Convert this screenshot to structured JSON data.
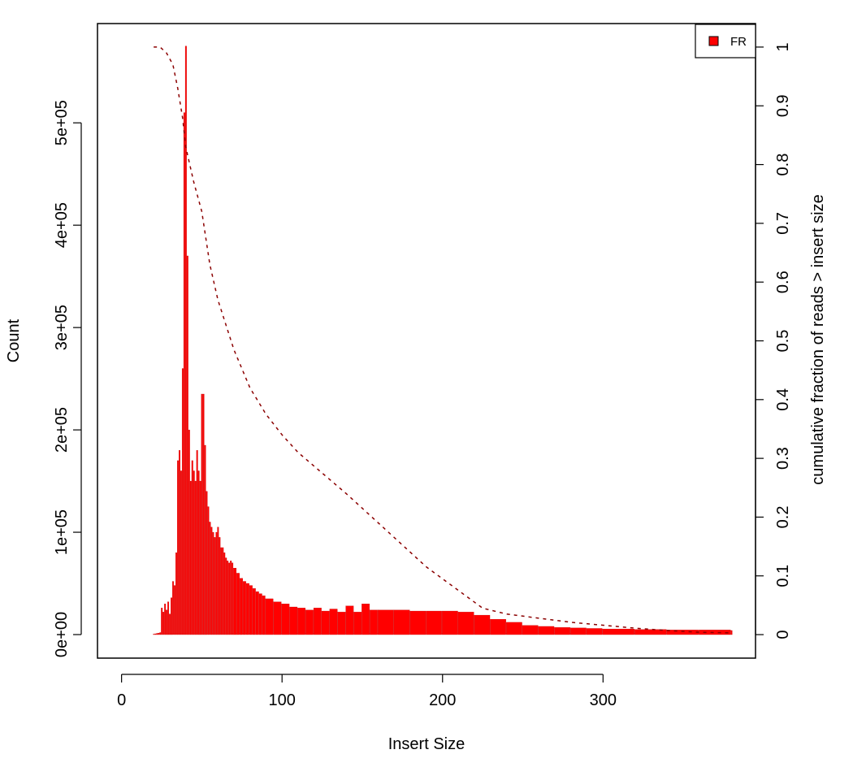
{
  "chart_data": {
    "type": "bar",
    "xlabel": "Insert Size",
    "ylabel": "Count",
    "y2label": "cumulative fraction of reads > insert size",
    "xlim": [
      -15,
      395
    ],
    "ylim": [
      -23000,
      597000
    ],
    "y2lim": [
      -0.04,
      1.04
    ],
    "x_ticks": [
      0,
      100,
      200,
      300
    ],
    "y_ticks": [
      0,
      100000,
      200000,
      300000,
      400000,
      500000
    ],
    "y_tick_labels": [
      "0e+00",
      "1e+05",
      "2e+05",
      "3e+05",
      "4e+05",
      "5e+05"
    ],
    "y2_ticks": [
      0,
      0.1,
      0.2,
      0.3,
      0.4,
      0.5,
      0.6,
      0.7,
      0.8,
      0.9,
      1
    ],
    "y2_tick_labels": [
      "0",
      "0.1",
      "0.2",
      "0.3",
      "0.4",
      "0.5",
      "0.6",
      "0.7",
      "0.8",
      "0.9",
      "1"
    ],
    "grid": false,
    "legend": {
      "position": "top-right",
      "entries": [
        {
          "label": "FR",
          "color": "#ff0000"
        }
      ]
    },
    "series": [
      {
        "name": "FR",
        "kind": "bar",
        "color": "#ff0000",
        "x": [
          20,
          21,
          22,
          23,
          24,
          25,
          26,
          27,
          28,
          29,
          30,
          31,
          32,
          33,
          34,
          35,
          36,
          37,
          38,
          39,
          40,
          41,
          42,
          43,
          44,
          45,
          46,
          47,
          48,
          49,
          50,
          51,
          52,
          53,
          54,
          55,
          56,
          57,
          58,
          59,
          60,
          61,
          62,
          63,
          64,
          65,
          66,
          67,
          68,
          69,
          70,
          72,
          74,
          76,
          78,
          80,
          82,
          84,
          86,
          88,
          90,
          95,
          100,
          105,
          110,
          115,
          120,
          125,
          130,
          135,
          140,
          145,
          150,
          155,
          160,
          170,
          180,
          190,
          200,
          210,
          220,
          230,
          240,
          250,
          260,
          270,
          280,
          290,
          300,
          320,
          340,
          360,
          380
        ],
        "values": [
          500,
          800,
          1200,
          1500,
          2000,
          26000,
          22000,
          30000,
          24000,
          32000,
          20000,
          36000,
          52000,
          48000,
          80000,
          170000,
          180000,
          160000,
          260000,
          510000,
          575000,
          370000,
          200000,
          150000,
          170000,
          160000,
          150000,
          180000,
          160000,
          150000,
          235000,
          235000,
          185000,
          140000,
          125000,
          110000,
          105000,
          100000,
          95000,
          100000,
          105000,
          95000,
          85000,
          85000,
          80000,
          75000,
          72000,
          70000,
          72000,
          70000,
          65000,
          60000,
          55000,
          52000,
          50000,
          48000,
          45000,
          42000,
          40000,
          38000,
          35000,
          32000,
          30000,
          27000,
          26000,
          24000,
          26000,
          23000,
          25000,
          22000,
          28000,
          22000,
          30000,
          24000,
          24000,
          24000,
          23000,
          23000,
          23000,
          22000,
          19000,
          15000,
          12000,
          9000,
          8000,
          7000,
          6500,
          6000,
          5500,
          5000,
          4500,
          4500,
          4000
        ]
      },
      {
        "name": "cumulative fraction of reads > insert size",
        "kind": "line",
        "color": "#8b0000",
        "line_style": "dashed",
        "x": [
          20,
          24,
          28,
          32,
          35,
          38,
          40,
          45,
          50,
          55,
          60,
          70,
          80,
          90,
          100,
          110,
          125,
          140,
          150,
          170,
          190,
          210,
          225,
          240,
          260,
          280,
          300,
          320,
          340,
          360,
          380
        ],
        "values": [
          1.0,
          1.0,
          0.99,
          0.97,
          0.93,
          0.88,
          0.83,
          0.77,
          0.72,
          0.63,
          0.57,
          0.485,
          0.42,
          0.375,
          0.34,
          0.31,
          0.275,
          0.24,
          0.215,
          0.165,
          0.115,
          0.075,
          0.045,
          0.035,
          0.028,
          0.021,
          0.016,
          0.011,
          0.007,
          0.004,
          0.003
        ]
      }
    ]
  }
}
